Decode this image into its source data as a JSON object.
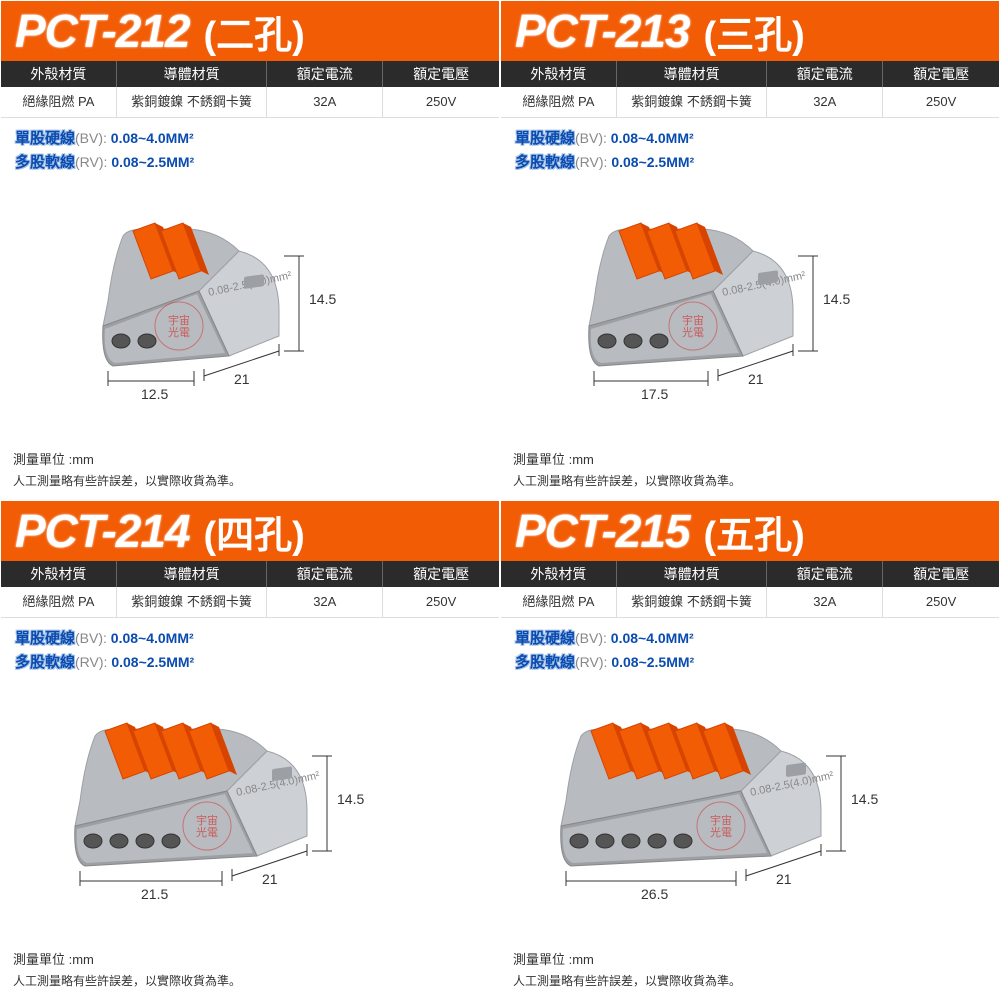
{
  "colors": {
    "header_bg": "#f25c05",
    "title_color": "#ffffff",
    "spec_header_bg": "#2b2b2b",
    "spec_header_text": "#ffffff",
    "wire_text": "#0a4bb0",
    "body_gray": "#b8bcc0",
    "body_gray_light": "#cdd1d5",
    "body_gray_dark": "#9ca0a4",
    "lever_orange": "#f25c05",
    "lever_orange_dark": "#d64400",
    "dim_line": "#333333"
  },
  "common": {
    "spec_headers": [
      "外殼材質",
      "導體材質",
      "額定電流",
      "額定電壓"
    ],
    "spec_values": [
      "絕緣阻燃 PA",
      "紫銅鍍鎳 不銹鋼卡簧",
      "32A",
      "250V"
    ],
    "wire_solid_label": "單股硬線",
    "wire_solid_paren": "(BV):",
    "wire_solid_val": " 0.08~4.0MM²",
    "wire_strand_label": "多股軟線",
    "wire_strand_paren": "(RV):",
    "wire_strand_val": " 0.08~2.5MM²",
    "unit_label": "測量單位 :mm",
    "disclaimer": "人工測量略有些許誤差，以實際收貨為準。",
    "body_text": "0.08-2.5(4.0)mm²"
  },
  "products": [
    {
      "model": "PCT-212",
      "holes": "(二孔)",
      "dims": {
        "height": "14.5",
        "length": "21",
        "width": "12.5"
      },
      "lever_count": 2
    },
    {
      "model": "PCT-213",
      "holes": "(三孔)",
      "dims": {
        "height": "14.5",
        "length": "21",
        "width": "17.5"
      },
      "lever_count": 3
    },
    {
      "model": "PCT-214",
      "holes": "(四孔)",
      "dims": {
        "height": "14.5",
        "length": "21",
        "width": "21.5"
      },
      "lever_count": 4
    },
    {
      "model": "PCT-215",
      "holes": "(五孔)",
      "dims": {
        "height": "14.5",
        "length": "21",
        "width": "26.5"
      },
      "lever_count": 5
    }
  ],
  "watermark": "宇宙光電"
}
